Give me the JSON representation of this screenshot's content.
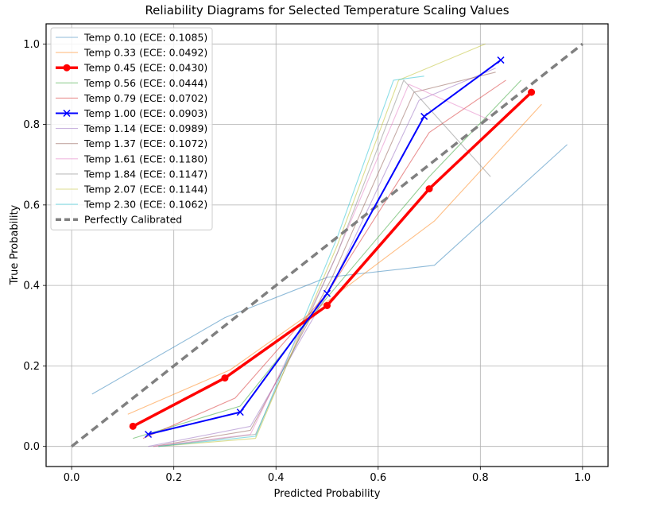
{
  "chart_data": {
    "type": "line",
    "title": "Reliability Diagrams for Selected Temperature Scaling Values",
    "xlabel": "Predicted Probability",
    "ylabel": "True Probability",
    "xlim": [
      -0.05,
      1.05
    ],
    "ylim": [
      -0.05,
      1.05
    ],
    "xticks": [
      0.0,
      0.2,
      0.4,
      0.6,
      0.8,
      1.0
    ],
    "xtick_labels": [
      "0.0",
      "0.2",
      "0.4",
      "0.6",
      "0.8",
      "1.0"
    ],
    "yticks": [
      0.0,
      0.2,
      0.4,
      0.6,
      0.8,
      1.0
    ],
    "ytick_labels": [
      "0.0",
      "0.2",
      "0.4",
      "0.6",
      "0.8",
      "1.0"
    ],
    "grid": true,
    "legend_position": "top-left",
    "series": [
      {
        "name": "Temp 0.10 (ECE: 0.1085)",
        "color": "#1f77b4",
        "emphasis": false,
        "x": [
          0.04,
          0.3,
          0.5,
          0.71,
          0.97
        ],
        "y": [
          0.13,
          0.32,
          0.42,
          0.45,
          0.75
        ]
      },
      {
        "name": "Temp 0.33 (ECE: 0.0492)",
        "color": "#ff7f0e",
        "emphasis": false,
        "x": [
          0.11,
          0.31,
          0.5,
          0.71,
          0.92
        ],
        "y": [
          0.08,
          0.19,
          0.36,
          0.56,
          0.85
        ]
      },
      {
        "name": "Temp 0.45 (ECE: 0.0430)",
        "color": "#ff0000",
        "emphasis": true,
        "marker": "circle",
        "x": [
          0.12,
          0.3,
          0.5,
          0.7,
          0.9
        ],
        "y": [
          0.05,
          0.17,
          0.35,
          0.64,
          0.88
        ]
      },
      {
        "name": "Temp 0.56 (ECE: 0.0444)",
        "color": "#2ca02c",
        "emphasis": false,
        "x": [
          0.12,
          0.33,
          0.5,
          0.7,
          0.88
        ],
        "y": [
          0.02,
          0.1,
          0.37,
          0.67,
          0.91
        ]
      },
      {
        "name": "Temp 0.79 (ECE: 0.0702)",
        "color": "#d62728",
        "emphasis": false,
        "x": [
          0.14,
          0.32,
          0.5,
          0.7,
          0.85
        ],
        "y": [
          0.02,
          0.12,
          0.38,
          0.78,
          0.91
        ]
      },
      {
        "name": "Temp 1.00 (ECE: 0.0903)",
        "color": "#0000ff",
        "emphasis": true,
        "marker": "x",
        "x": [
          0.15,
          0.33,
          0.5,
          0.69,
          0.84
        ],
        "y": [
          0.03,
          0.085,
          0.38,
          0.82,
          0.96
        ]
      },
      {
        "name": "Temp 1.14 (ECE: 0.0989)",
        "color": "#9467bd",
        "emphasis": false,
        "x": [
          0.15,
          0.35,
          0.51,
          0.68,
          0.83
        ],
        "y": [
          0.0,
          0.05,
          0.4,
          0.86,
          0.94
        ]
      },
      {
        "name": "Temp 1.37 (ECE: 0.1072)",
        "color": "#8c564b",
        "emphasis": false,
        "x": [
          0.16,
          0.35,
          0.51,
          0.67,
          0.83
        ],
        "y": [
          0.0,
          0.04,
          0.42,
          0.88,
          0.93
        ]
      },
      {
        "name": "Temp 1.61 (ECE: 0.1180)",
        "color": "#e377c2",
        "emphasis": false,
        "x": [
          0.16,
          0.35,
          0.51,
          0.66,
          0.82
        ],
        "y": [
          0.0,
          0.03,
          0.45,
          0.9,
          0.81
        ]
      },
      {
        "name": "Temp 1.84 (ECE: 0.1147)",
        "color": "#7f7f7f",
        "emphasis": false,
        "x": [
          0.17,
          0.36,
          0.52,
          0.65,
          0.82
        ],
        "y": [
          0.0,
          0.03,
          0.48,
          0.91,
          0.67
        ]
      },
      {
        "name": "Temp 2.07 (ECE: 0.1144)",
        "color": "#bcbd22",
        "emphasis": false,
        "x": [
          0.17,
          0.36,
          0.52,
          0.64,
          0.81
        ],
        "y": [
          0.0,
          0.02,
          0.5,
          0.91,
          1.0
        ]
      },
      {
        "name": "Temp 2.30 (ECE: 0.1062)",
        "color": "#17becf",
        "emphasis": false,
        "x": [
          0.17,
          0.36,
          0.52,
          0.63,
          0.69
        ],
        "y": [
          0.0,
          0.025,
          0.52,
          0.91,
          0.92
        ]
      },
      {
        "name": "Perfectly Calibrated",
        "color": "#808080",
        "emphasis": false,
        "dashed": true,
        "x": [
          0.0,
          1.0
        ],
        "y": [
          0.0,
          1.0
        ]
      }
    ]
  }
}
